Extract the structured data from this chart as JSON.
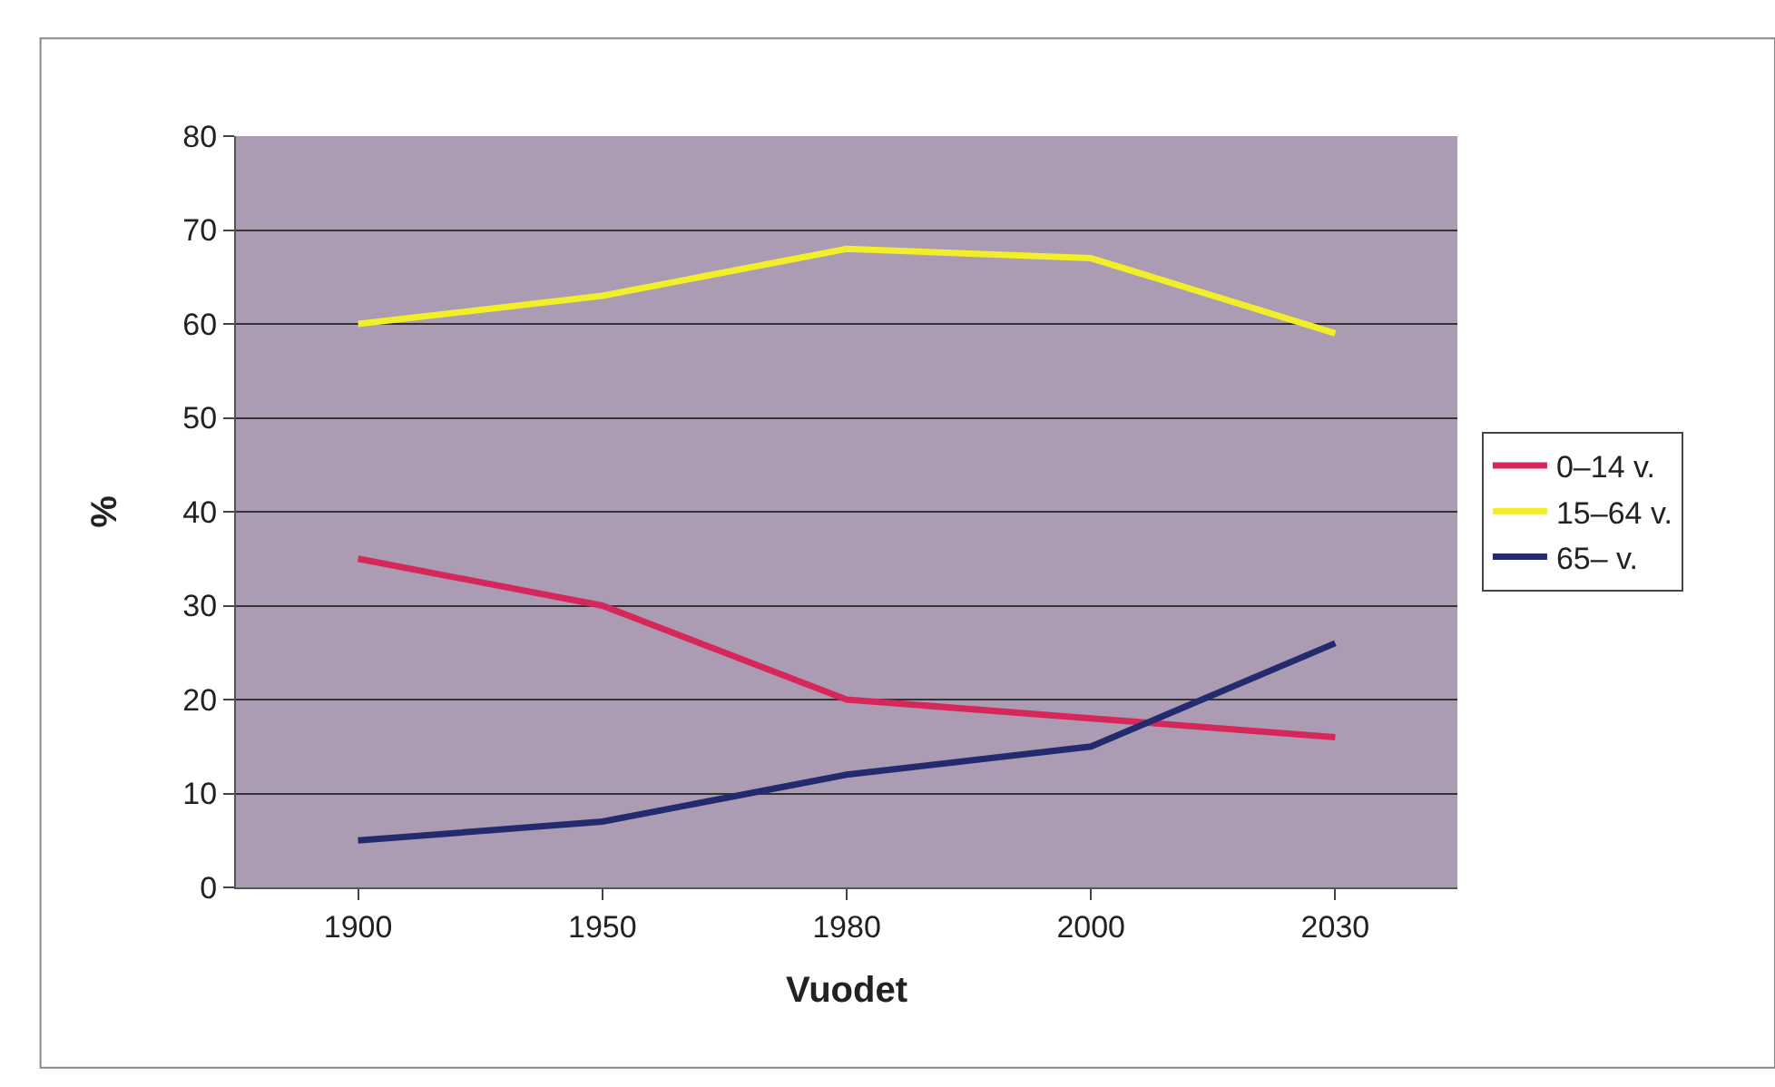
{
  "chart_data": {
    "type": "line",
    "xlabel": "Vuodet",
    "ylabel": "%",
    "categories": [
      "1900",
      "1950",
      "1980",
      "2000",
      "2030"
    ],
    "series": [
      {
        "name": "0–14 v.",
        "color": "#d6275a",
        "values": [
          35,
          30,
          20,
          18,
          16
        ]
      },
      {
        "name": "15–64 v.",
        "color": "#f2ee2a",
        "values": [
          60,
          63,
          68,
          67,
          59
        ]
      },
      {
        "name": "65– v.",
        "color": "#232a6e",
        "values": [
          5,
          7,
          12,
          15,
          26
        ]
      }
    ],
    "ylim": [
      0,
      80
    ],
    "yticks": [
      0,
      10,
      20,
      30,
      40,
      50,
      60,
      70,
      80
    ],
    "grid": "y",
    "legend": "right",
    "marker": "none",
    "line_style": "solid"
  }
}
